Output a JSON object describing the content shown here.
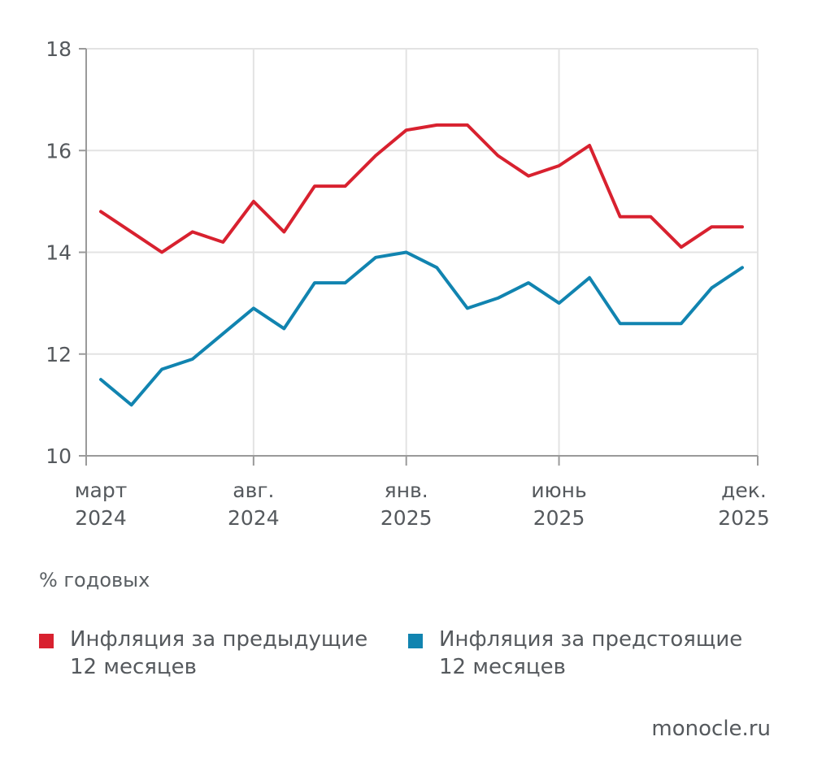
{
  "chart_data": {
    "type": "line",
    "x": [
      "март 2024",
      "апр. 2024",
      "май 2024",
      "июнь 2024",
      "июль 2024",
      "авг. 2024",
      "сент. 2024",
      "окт. 2024",
      "нояб. 2024",
      "дек. 2024",
      "янв. 2025",
      "февр. 2025",
      "март 2025",
      "апр. 2025",
      "май 2025",
      "июнь 2025",
      "июль 2025",
      "авг. 2025",
      "сент. 2025",
      "окт. 2025",
      "нояб. 2025",
      "дек. 2025"
    ],
    "x_ticks": [
      {
        "index": 0,
        "line1": "март",
        "line2": "2024"
      },
      {
        "index": 5,
        "line1": "авг.",
        "line2": "2024"
      },
      {
        "index": 10,
        "line1": "янв.",
        "line2": "2025"
      },
      {
        "index": 15,
        "line1": "июнь",
        "line2": "2025"
      },
      {
        "index": 21,
        "line1": "дек.",
        "line2": "2025"
      }
    ],
    "series": [
      {
        "name": "Инфляция за предыдущие 12 месяцев",
        "color": "#d8212f",
        "values": [
          14.8,
          14.4,
          14.0,
          14.4,
          14.2,
          15.0,
          14.4,
          15.3,
          15.3,
          15.9,
          16.4,
          16.5,
          16.5,
          15.9,
          15.5,
          15.7,
          16.1,
          14.7,
          14.7,
          14.1,
          14.5,
          14.5
        ]
      },
      {
        "name": "Инфляция за предстоящие 12 месяцев",
        "color": "#1184b0",
        "values": [
          11.5,
          11.0,
          11.7,
          11.9,
          12.4,
          12.9,
          12.5,
          13.4,
          13.4,
          13.9,
          14.0,
          13.7,
          12.9,
          13.1,
          13.4,
          13.0,
          13.5,
          12.6,
          12.6,
          12.6,
          13.3,
          13.7
        ]
      }
    ],
    "ylim": [
      10,
      18
    ],
    "yticks": [
      10,
      12,
      14,
      16,
      18
    ],
    "grid": true,
    "ylabel": "% годовых"
  },
  "legend": {
    "red_line1": "Инфляция за предыдущие",
    "red_line2": "12 месяцев",
    "blue_line1": "Инфляция за предстоящие",
    "blue_line2": "12 месяцев"
  },
  "unit_label": "% годовых",
  "source": "monocle.ru",
  "colors": {
    "red": "#d8212f",
    "blue": "#1184b0",
    "grid": "#e3e3e3",
    "axis": "#9a9a9a"
  }
}
